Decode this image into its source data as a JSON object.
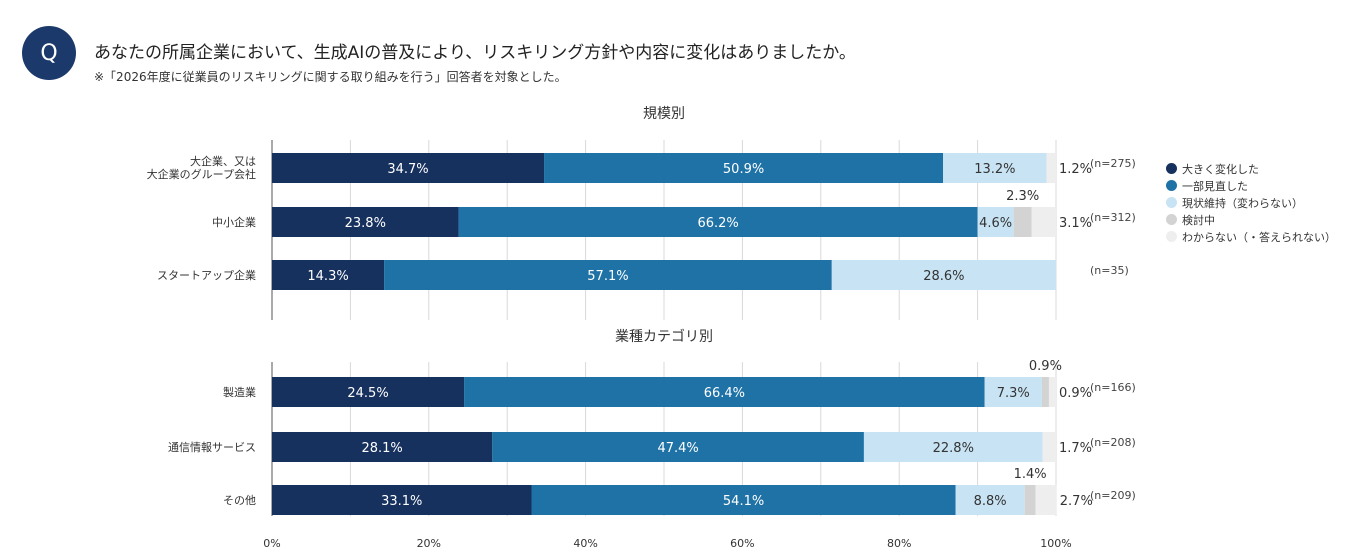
{
  "header": {
    "badge": "Q",
    "question": "あなたの所属企業において、生成AIの普及により、リスキリング方針や内容に変化はありましたか。",
    "note": "※「2026年度に従業員のリスキリングに関する取り組みを行う」回答者を対象とした。"
  },
  "legend": [
    {
      "label": "大きく変化した",
      "color": "#17315f"
    },
    {
      "label": "一部見直した",
      "color": "#1f72a6"
    },
    {
      "label": "現状維持（変わらない）",
      "color": "#c8e3f3"
    },
    {
      "label": "検討中",
      "color": "#d3d3d3"
    },
    {
      "label": "わからない（・答えられない）",
      "color": "#eeeeee"
    }
  ],
  "chart_data": [
    {
      "type": "bar",
      "orientation": "horizontal",
      "stacked": true,
      "title": "規模別",
      "categories": [
        [
          "大企業、又は",
          "大企業のグループ会社"
        ],
        [
          "中小企業"
        ],
        [
          "スタートアップ企業"
        ]
      ],
      "n": [
        "(n=275)",
        "(n=312)",
        "(n=35)"
      ],
      "series": [
        {
          "name": "大きく変化した",
          "values": [
            34.7,
            23.8,
            14.3
          ]
        },
        {
          "name": "一部見直した",
          "values": [
            50.9,
            66.2,
            57.1
          ]
        },
        {
          "name": "現状維持（変わらない）",
          "values": [
            13.2,
            4.6,
            28.6
          ]
        },
        {
          "name": "検討中",
          "values": [
            0,
            2.3,
            0
          ]
        },
        {
          "name": "わからない（・答えられない）",
          "values": [
            1.2,
            3.1,
            0
          ]
        }
      ],
      "xlim": [
        0,
        100
      ]
    },
    {
      "type": "bar",
      "orientation": "horizontal",
      "stacked": true,
      "title": "業種カテゴリ別",
      "categories": [
        [
          "製造業"
        ],
        [
          "通信情報サービス"
        ],
        [
          "その他"
        ]
      ],
      "n": [
        "(n=166)",
        "(n=208)",
        "(n=209)"
      ],
      "series": [
        {
          "name": "大きく変化した",
          "values": [
            24.5,
            28.1,
            33.1
          ]
        },
        {
          "name": "一部見直した",
          "values": [
            66.4,
            47.4,
            54.1
          ]
        },
        {
          "name": "現状維持（変わらない）",
          "values": [
            7.3,
            22.8,
            8.8
          ]
        },
        {
          "name": "検討中",
          "values": [
            0.9,
            0,
            1.4
          ]
        },
        {
          "name": "わからない（・答えられない）",
          "values": [
            0.9,
            1.7,
            2.7
          ]
        }
      ],
      "xlim": [
        0,
        100
      ],
      "xticks": [
        "0%",
        "20%",
        "40%",
        "60%",
        "80%",
        "100%"
      ]
    }
  ]
}
